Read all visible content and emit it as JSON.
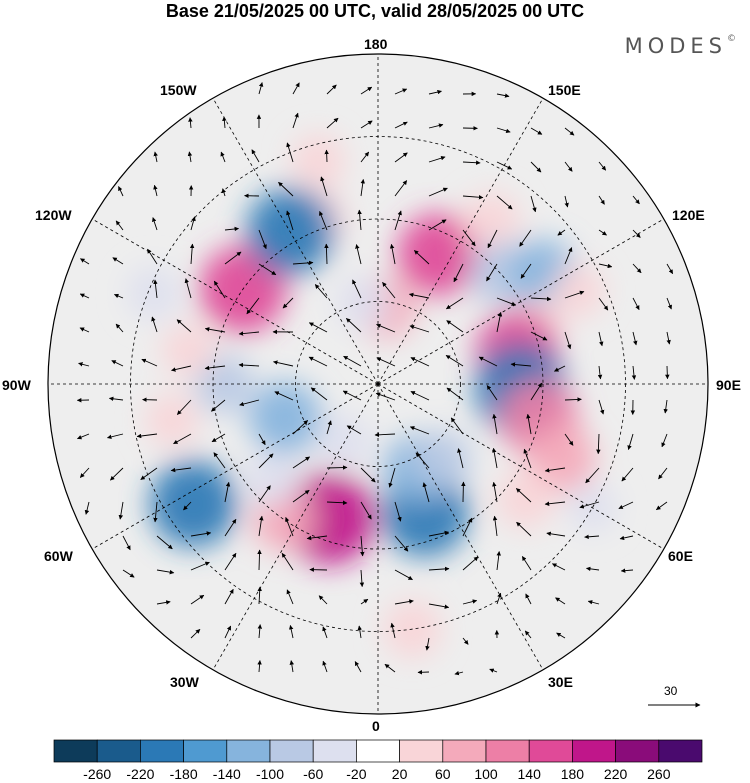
{
  "title": "Base 21/05/2025 00 UTC, valid 28/05/2025 00 UTC",
  "brand": "MODES",
  "brand_mark": "©",
  "map": {
    "projection": "north polar stereographic",
    "longitude_labels": {
      "top": "180",
      "bottom": "0",
      "left": "90W",
      "right": "90E",
      "upper_left": "150W",
      "upper_left_mid": "120W",
      "lower_left_mid": "60W",
      "lower_left": "30W",
      "upper_right": "150E",
      "upper_right_mid": "120E",
      "lower_right_mid": "60E",
      "lower_right": "30E"
    },
    "reference_vector": {
      "value": "30"
    },
    "anomaly_cells": [
      {
        "lon": 200,
        "colat": 32,
        "value": 60
      },
      {
        "lon": 155,
        "colat": 26,
        "value": 160
      },
      {
        "lon": 145,
        "colat": 36,
        "value": 60
      },
      {
        "lon": 132,
        "colat": 30,
        "value": -80
      },
      {
        "lon": 124,
        "colat": 36,
        "value": -100
      },
      {
        "lon": 110,
        "colat": 30,
        "value": 60
      },
      {
        "lon": 103,
        "colat": 26,
        "value": 160
      },
      {
        "lon": 88,
        "colat": 26,
        "value": -200
      },
      {
        "lon": 78,
        "colat": 30,
        "value": 140
      },
      {
        "lon": 68,
        "colat": 36,
        "value": 100
      },
      {
        "lon": 52,
        "colat": 34,
        "value": 60
      },
      {
        "lon": 20,
        "colat": 25,
        "value": -180
      },
      {
        "lon": 25,
        "colat": 17,
        "value": -100
      },
      {
        "lon": 8,
        "colat": 45,
        "value": 60
      },
      {
        "lon": -20,
        "colat": 26,
        "value": 200
      },
      {
        "lon": -35,
        "colat": 30,
        "value": 80
      },
      {
        "lon": -48,
        "colat": 26,
        "value": -40
      },
      {
        "lon": -57,
        "colat": 40,
        "value": -180
      },
      {
        "lon": -70,
        "colat": 18,
        "value": -120
      },
      {
        "lon": -90,
        "colat": 28,
        "value": -60
      },
      {
        "lon": -100,
        "colat": 35,
        "value": 40
      },
      {
        "lon": -125,
        "colat": 30,
        "value": 180
      },
      {
        "lon": -150,
        "colat": 32,
        "value": -180
      },
      {
        "lon": -165,
        "colat": 42,
        "value": 40
      },
      {
        "lon": -112,
        "colat": 44,
        "value": -40
      },
      {
        "lon": 175,
        "colat": 14,
        "value": 80
      },
      {
        "lon": -170,
        "colat": 15,
        "value": -40
      },
      {
        "lon": 60,
        "colat": 45,
        "value": -20
      },
      {
        "lon": 115,
        "colat": 40,
        "value": 40
      },
      {
        "lon": -30,
        "colat": 12,
        "value": -40
      },
      {
        "lon": 40,
        "colat": 18,
        "value": -60
      },
      {
        "lon": -80,
        "colat": 38,
        "value": 40
      }
    ]
  },
  "colorbar": {
    "colors": [
      "#0d3b5a",
      "#1a5b8c",
      "#2b79b6",
      "#4f9ad1",
      "#86b4dd",
      "#b9c9e4",
      "#dde0ef",
      "#ffffff",
      "#f9d5d8",
      "#f4aabb",
      "#ed7fa6",
      "#e04a98",
      "#c0168a",
      "#8a0c7a",
      "#4a0a6e"
    ],
    "tick_labels": [
      "-260",
      "-220",
      "-180",
      "-140",
      "-100",
      "-60",
      "-20",
      "20",
      "60",
      "100",
      "140",
      "180",
      "220",
      "260"
    ]
  }
}
